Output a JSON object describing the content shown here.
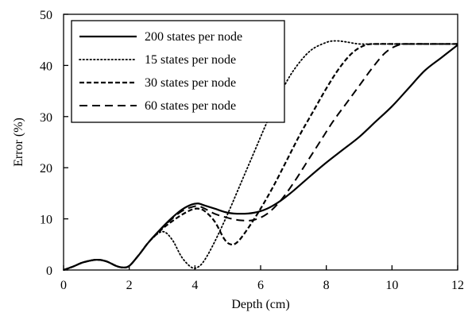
{
  "chart_data": {
    "type": "line",
    "title": "",
    "xlabel": "Depth (cm)",
    "ylabel": "Error (%)",
    "xlim": [
      0,
      12
    ],
    "ylim": [
      0,
      50
    ],
    "xticks": [
      0,
      2,
      4,
      6,
      8,
      10,
      12
    ],
    "yticks": [
      0,
      10,
      20,
      30,
      40,
      50
    ],
    "grid": false,
    "legend_position": "top-left",
    "series": [
      {
        "name": "200 states per node",
        "dash": "solid",
        "color": "#000000",
        "x": [
          0,
          0.3,
          0.6,
          1.0,
          1.3,
          1.6,
          1.8,
          2.0,
          2.3,
          2.6,
          3.0,
          3.3,
          3.6,
          3.9,
          4.1,
          4.3,
          4.6,
          5.0,
          5.4,
          5.8,
          6.2,
          6.6,
          7.0,
          7.5,
          8.0,
          8.5,
          9.0,
          9.5,
          10.0,
          10.5,
          11.0,
          11.5,
          12.0
        ],
        "y": [
          0,
          0.7,
          1.5,
          2.0,
          1.7,
          0.8,
          0.5,
          0.8,
          3.0,
          5.5,
          8.3,
          10.2,
          11.8,
          12.8,
          13.0,
          12.6,
          12.0,
          11.2,
          11.0,
          11.2,
          12.0,
          13.5,
          15.5,
          18.3,
          21.0,
          23.5,
          26.0,
          29.0,
          32.0,
          35.5,
          39.0,
          41.5,
          44.0
        ]
      },
      {
        "name": "15 states per node",
        "dash": "dotted",
        "color": "#000000",
        "x": [
          0,
          0.3,
          0.6,
          1.0,
          1.3,
          1.6,
          1.8,
          2.0,
          2.3,
          2.6,
          3.0,
          3.3,
          3.6,
          3.9,
          4.1,
          4.3,
          4.6,
          5.0,
          5.4,
          5.8,
          6.2,
          6.6,
          7.0,
          7.5,
          8.0,
          8.3,
          8.6,
          9.0,
          9.5,
          10.0,
          11.0,
          12.0
        ],
        "y": [
          0,
          0.7,
          1.5,
          2.0,
          1.7,
          0.8,
          0.5,
          0.8,
          3.0,
          5.5,
          7.5,
          6.0,
          2.5,
          0.5,
          0.6,
          2.0,
          5.5,
          11.0,
          17.0,
          23.0,
          29.0,
          34.5,
          39.0,
          42.8,
          44.5,
          44.8,
          44.6,
          44.2,
          44.2,
          44.2,
          44.2,
          44.2
        ]
      },
      {
        "name": "30 states per node",
        "dash": "short-dash",
        "color": "#000000",
        "x": [
          0,
          0.3,
          0.6,
          1.0,
          1.3,
          1.6,
          1.8,
          2.0,
          2.3,
          2.6,
          3.0,
          3.3,
          3.6,
          3.9,
          4.1,
          4.3,
          4.6,
          4.9,
          5.1,
          5.3,
          5.6,
          6.0,
          6.4,
          6.8,
          7.2,
          7.6,
          8.0,
          8.4,
          8.8,
          9.2,
          9.6,
          10.0,
          11.0,
          12.0
        ],
        "y": [
          0,
          0.7,
          1.5,
          2.0,
          1.7,
          0.8,
          0.5,
          0.8,
          3.0,
          5.5,
          8.0,
          9.5,
          10.8,
          11.8,
          12.0,
          11.5,
          9.5,
          6.0,
          5.0,
          5.5,
          8.0,
          12.0,
          16.5,
          21.5,
          26.5,
          31.0,
          35.5,
          39.5,
          42.5,
          44.0,
          44.2,
          44.2,
          44.2,
          44.2
        ]
      },
      {
        "name": "60 states per node",
        "dash": "long-dash",
        "color": "#000000",
        "x": [
          0,
          0.3,
          0.6,
          1.0,
          1.3,
          1.6,
          1.8,
          2.0,
          2.3,
          2.6,
          3.0,
          3.3,
          3.6,
          3.9,
          4.1,
          4.3,
          4.6,
          5.0,
          5.4,
          5.8,
          6.2,
          6.6,
          7.0,
          7.4,
          7.8,
          8.2,
          8.6,
          9.0,
          9.4,
          9.8,
          10.2,
          10.6,
          11.0,
          12.0
        ],
        "y": [
          0,
          0.7,
          1.5,
          2.0,
          1.7,
          0.8,
          0.5,
          0.8,
          3.0,
          5.5,
          8.2,
          10.0,
          11.5,
          12.3,
          12.5,
          12.0,
          11.0,
          10.2,
          9.7,
          9.8,
          11.0,
          13.5,
          17.0,
          21.0,
          25.0,
          29.0,
          32.5,
          36.0,
          39.5,
          42.5,
          44.0,
          44.2,
          44.2,
          44.2
        ]
      }
    ]
  }
}
